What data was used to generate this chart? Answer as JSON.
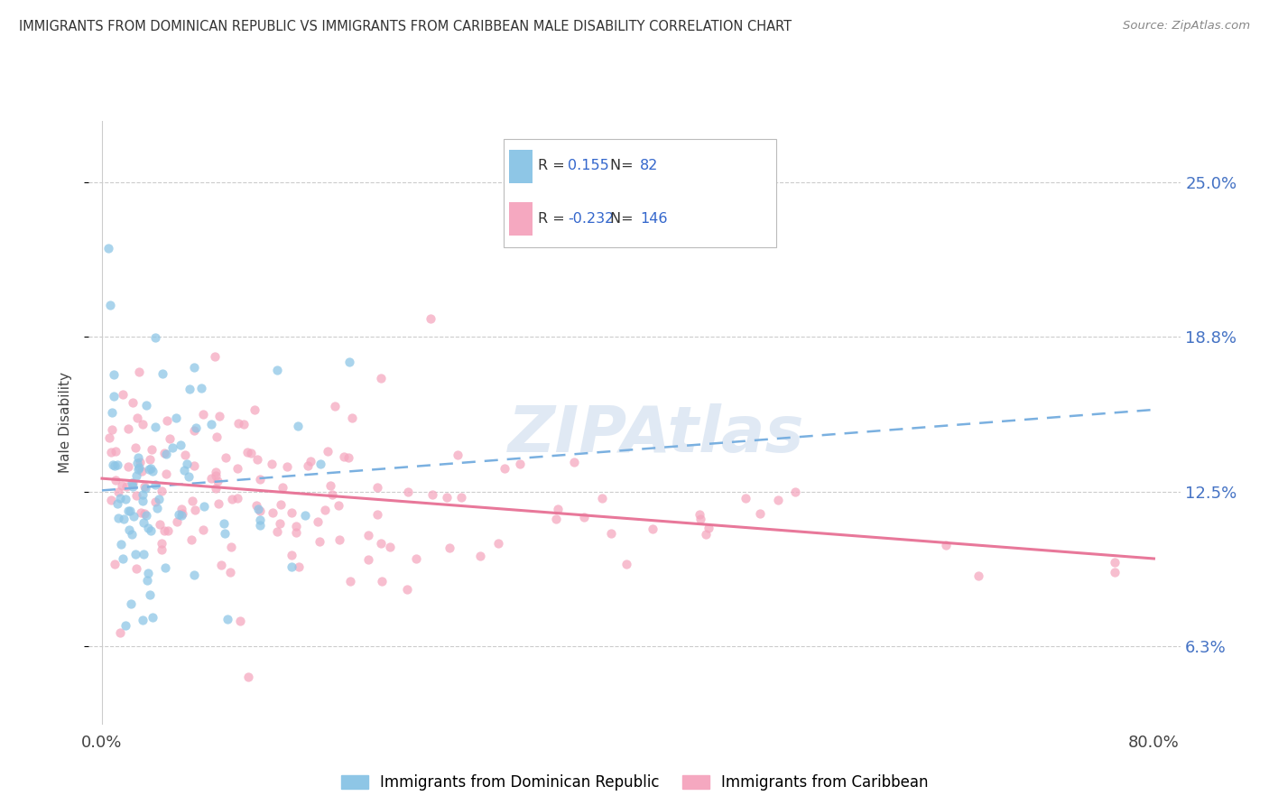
{
  "title": "IMMIGRANTS FROM DOMINICAN REPUBLIC VS IMMIGRANTS FROM CARIBBEAN MALE DISABILITY CORRELATION CHART",
  "source": "Source: ZipAtlas.com",
  "ylabel": "Male Disability",
  "r_blue": 0.155,
  "n_blue": 82,
  "r_pink": -0.232,
  "n_pink": 146,
  "xlim": [
    0.0,
    80.0
  ],
  "ylim": [
    3.125,
    27.5
  ],
  "yticks": [
    6.3,
    12.5,
    18.8,
    25.0
  ],
  "ytick_labels": [
    "6.3%",
    "12.5%",
    "18.8%",
    "25.0%"
  ],
  "color_blue": "#8ec6e6",
  "color_pink": "#f5a8c0",
  "trend_blue": "#5b8dd9",
  "trend_pink": "#e8789a",
  "background_color": "#ffffff",
  "legend_label_blue": "Immigrants from Dominican Republic",
  "legend_label_pink": "Immigrants from Caribbean",
  "watermark": "ZIPAtlas"
}
